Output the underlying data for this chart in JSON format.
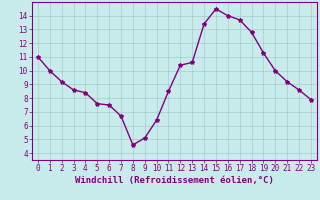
{
  "x": [
    0,
    1,
    2,
    3,
    4,
    5,
    6,
    7,
    8,
    9,
    10,
    11,
    12,
    13,
    14,
    15,
    16,
    17,
    18,
    19,
    20,
    21,
    22,
    23
  ],
  "y": [
    11.0,
    10.0,
    9.2,
    8.6,
    8.4,
    7.6,
    7.5,
    6.7,
    4.6,
    5.1,
    6.4,
    8.5,
    10.4,
    10.6,
    13.4,
    14.5,
    14.0,
    13.7,
    12.8,
    11.3,
    10.0,
    9.2,
    8.6,
    7.9
  ],
  "line_color": "#800080",
  "marker": "*",
  "marker_size": 3,
  "background_color": "#c8ecec",
  "grid_color": "#a8cccc",
  "xlabel": "Windchill (Refroidissement éolien,°C)",
  "xlabel_color": "#800080",
  "xlim": [
    -0.5,
    23.5
  ],
  "ylim": [
    3.5,
    15.0
  ],
  "yticks": [
    4,
    5,
    6,
    7,
    8,
    9,
    10,
    11,
    12,
    13,
    14
  ],
  "xticks": [
    0,
    1,
    2,
    3,
    4,
    5,
    6,
    7,
    8,
    9,
    10,
    11,
    12,
    13,
    14,
    15,
    16,
    17,
    18,
    19,
    20,
    21,
    22,
    23
  ],
  "tick_color": "#800080",
  "tick_label_fontsize": 5.5,
  "xlabel_fontsize": 6.5,
  "line_width": 1.0
}
